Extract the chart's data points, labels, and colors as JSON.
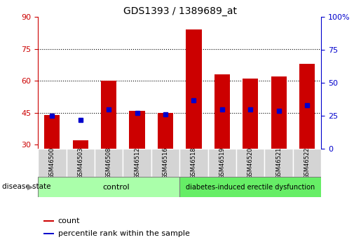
{
  "title": "GDS1393 / 1389689_at",
  "samples": [
    "GSM46500",
    "GSM46503",
    "GSM46508",
    "GSM46512",
    "GSM46516",
    "GSM46518",
    "GSM46519",
    "GSM46520",
    "GSM46521",
    "GSM46522"
  ],
  "counts": [
    44,
    32,
    60,
    46,
    45,
    84,
    63,
    61,
    62,
    68
  ],
  "percentile_ranks": [
    25,
    22,
    30,
    27,
    26,
    37,
    30,
    30,
    29,
    33
  ],
  "group_colors": {
    "control": "#aaffaa",
    "diabetes-induced erectile dysfunction": "#66ee66"
  },
  "bar_color": "#cc0000",
  "dot_color": "#0000cc",
  "ylim_left": [
    28,
    90
  ],
  "ylim_right": [
    0,
    100
  ],
  "yticks_left": [
    30,
    45,
    60,
    75,
    90
  ],
  "yticks_right": [
    0,
    25,
    50,
    75,
    100
  ],
  "ytick_labels_right": [
    "0",
    "25",
    "50",
    "75",
    "100%"
  ],
  "hlines": [
    45,
    60,
    75
  ],
  "left_axis_color": "#cc0000",
  "right_axis_color": "#0000cc",
  "legend_items": [
    "count",
    "percentile rank within the sample"
  ],
  "bar_width": 0.55,
  "n_control": 5,
  "n_total": 10,
  "control_label": "control",
  "disease_label": "diabetes-induced erectile dysfunction",
  "disease_state_text": "disease state"
}
